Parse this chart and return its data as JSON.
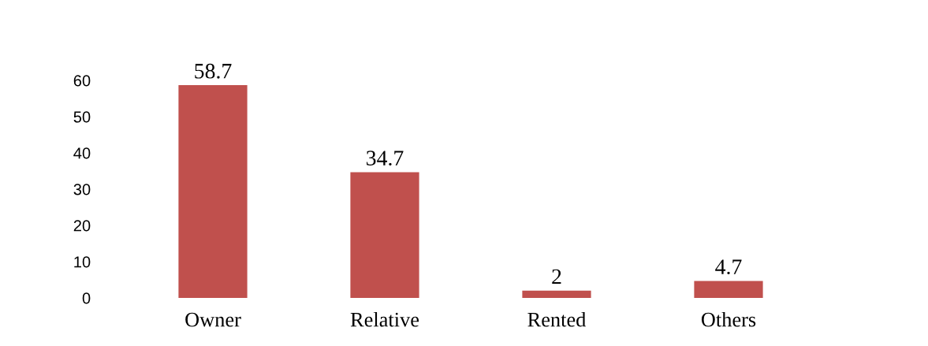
{
  "chart_data": {
    "type": "bar",
    "categories": [
      "Owner",
      "Relative",
      "Rented",
      "Others"
    ],
    "values": [
      58.7,
      34.7,
      2,
      4.7
    ],
    "color": "#c0504d",
    "ylim": [
      0,
      60
    ],
    "yticks": [
      0,
      10,
      20,
      30,
      40,
      50,
      60
    ],
    "data_labels": true,
    "grid": false,
    "legend": false,
    "tick_labels": "y"
  }
}
